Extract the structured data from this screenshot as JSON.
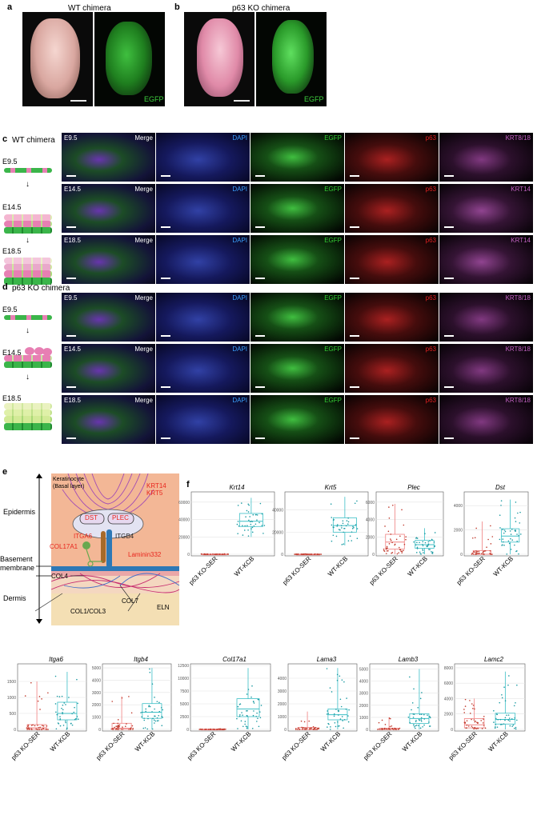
{
  "panel_labels": {
    "a": "a",
    "b": "b",
    "c": "c",
    "d": "d",
    "e": "e",
    "f": "f"
  },
  "panel_a": {
    "title": "WT chimera",
    "egfp": "EGFP"
  },
  "panel_b": {
    "title": "p63 KO chimera",
    "egfp": "EGFP"
  },
  "panel_c": {
    "side_title": "WT chimera",
    "stages": [
      "E9.5",
      "E14.5",
      "E18.5"
    ],
    "rows": [
      {
        "stage": "E9.5",
        "channels": [
          "Merge",
          "DAPI",
          "EGFP",
          "p63",
          "KRT8/18"
        ]
      },
      {
        "stage": "E14.5",
        "channels": [
          "Merge",
          "DAPI",
          "EGFP",
          "p63",
          "KRT14"
        ]
      },
      {
        "stage": "E18.5",
        "channels": [
          "Merge",
          "DAPI",
          "EGFP",
          "p63",
          "KRT14"
        ]
      }
    ]
  },
  "panel_d": {
    "side_title": "p63 KO chimera",
    "stages": [
      "E9.5",
      "E14.5",
      "E18.5"
    ],
    "rows": [
      {
        "stage": "E9.5",
        "channels": [
          "Merge",
          "DAPI",
          "EGFP",
          "p63",
          "KRT8/18"
        ]
      },
      {
        "stage": "E14.5",
        "channels": [
          "Merge",
          "DAPI",
          "EGFP",
          "p63",
          "KRT8/18"
        ]
      },
      {
        "stage": "E18.5",
        "channels": [
          "Merge",
          "DAPI",
          "EGFP",
          "p63",
          "KRT8/18"
        ]
      }
    ]
  },
  "panel_e": {
    "layers": {
      "epidermis": "Epidermis",
      "basement": "Basement\nmembrane",
      "dermis": "Dermis"
    },
    "cell_label": "Keratinocyte\n(Basal layer)",
    "krt": "KRT14\nKRT5",
    "dst": "DST",
    "plec": "PLEC",
    "itga6": "ITGA6",
    "itgb4": "ITGB4",
    "col17a1": "COL17A1",
    "laminin": "Laminin332",
    "col4": "COL4",
    "col7": "COL7",
    "eln": "ELN",
    "col1": "COL1/COL3"
  },
  "colors": {
    "ko": "#f08080",
    "wt": "#3cbfc6",
    "egfp": "#33cc33",
    "dapi": "#4a7bdc",
    "p63": "#e03030",
    "krt": "#c060c0",
    "red_text": "#e8261e"
  },
  "chart_data": [
    {
      "type": "box",
      "gene": "Krt14",
      "categories": [
        "p63 KO-SER",
        "WT-KCB"
      ],
      "ylim": [
        0,
        70000
      ],
      "yticks": [
        0,
        20000,
        40000,
        60000
      ],
      "series": [
        {
          "name": "p63 KO-SER",
          "q1": 0,
          "median": 0,
          "q3": 200,
          "whisker_low": 0,
          "whisker_high": 500
        },
        {
          "name": "WT-KCB",
          "q1": 32000,
          "median": 38000,
          "q3": 47000,
          "whisker_low": 20000,
          "whisker_high": 65000
        }
      ]
    },
    {
      "type": "box",
      "gene": "Krt5",
      "categories": [
        "p63 KO-SER",
        "WT-KCB"
      ],
      "ylim": [
        0,
        55000
      ],
      "yticks": [
        0,
        20000,
        40000
      ],
      "series": [
        {
          "name": "p63 KO-SER",
          "q1": 0,
          "median": 0,
          "q3": 100,
          "whisker_low": 0,
          "whisker_high": 300
        },
        {
          "name": "WT-KCB",
          "q1": 20000,
          "median": 26000,
          "q3": 33000,
          "whisker_low": 8000,
          "whisker_high": 52000
        }
      ]
    },
    {
      "type": "box",
      "gene": "Plec",
      "categories": [
        "p63 KO-SER",
        "WT-KCB"
      ],
      "ylim": [
        0,
        7000
      ],
      "yticks": [
        0,
        2000,
        4000,
        6000
      ],
      "series": [
        {
          "name": "p63 KO-SER",
          "q1": 600,
          "median": 1400,
          "q3": 2300,
          "whisker_low": 0,
          "whisker_high": 5800
        },
        {
          "name": "WT-KCB",
          "q1": 700,
          "median": 1100,
          "q3": 1600,
          "whisker_low": 0,
          "whisker_high": 3000
        }
      ]
    },
    {
      "type": "box",
      "gene": "Dst",
      "categories": [
        "p63 KO-SER",
        "WT-KCB"
      ],
      "ylim": [
        0,
        5000
      ],
      "yticks": [
        0,
        2000,
        4000
      ],
      "series": [
        {
          "name": "p63 KO-SER",
          "q1": 0,
          "median": 0,
          "q3": 300,
          "whisker_low": 0,
          "whisker_high": 2700
        },
        {
          "name": "WT-KCB",
          "q1": 1000,
          "median": 1500,
          "q3": 2100,
          "whisker_low": 0,
          "whisker_high": 4500
        }
      ]
    },
    {
      "type": "box",
      "gene": "Itga6",
      "categories": [
        "p63 KO-SER",
        "WT-KCB"
      ],
      "ylim": [
        0,
        2000
      ],
      "yticks": [
        0,
        500,
        1000,
        1500
      ],
      "series": [
        {
          "name": "p63 KO-SER",
          "q1": 0,
          "median": 50,
          "q3": 150,
          "whisker_low": 0,
          "whisker_high": 1500
        },
        {
          "name": "WT-KCB",
          "q1": 300,
          "median": 500,
          "q3": 850,
          "whisker_low": 0,
          "whisker_high": 1800
        }
      ]
    },
    {
      "type": "box",
      "gene": "Itgb4",
      "categories": [
        "p63 KO-SER",
        "WT-KCB"
      ],
      "ylim": [
        0,
        5200
      ],
      "yticks": [
        0,
        1000,
        2000,
        3000,
        4000,
        5000
      ],
      "series": [
        {
          "name": "p63 KO-SER",
          "q1": 0,
          "median": 100,
          "q3": 500,
          "whisker_low": 0,
          "whisker_high": 2700
        },
        {
          "name": "WT-KCB",
          "q1": 900,
          "median": 1400,
          "q3": 2100,
          "whisker_low": 0,
          "whisker_high": 5000
        }
      ]
    },
    {
      "type": "box",
      "gene": "Col17a1",
      "categories": [
        "p63 KO-SER",
        "WT-KCB"
      ],
      "ylim": [
        0,
        12500
      ],
      "yticks": [
        0,
        2500,
        5000,
        7500,
        10000,
        12500
      ],
      "series": [
        {
          "name": "p63 KO-SER",
          "q1": 0,
          "median": 0,
          "q3": 50,
          "whisker_low": 0,
          "whisker_high": 100
        },
        {
          "name": "WT-KCB",
          "q1": 2500,
          "median": 4000,
          "q3": 6000,
          "whisker_low": 0,
          "whisker_high": 12000
        }
      ]
    },
    {
      "type": "box",
      "gene": "Lama3",
      "categories": [
        "p63 KO-SER",
        "WT-KCB"
      ],
      "ylim": [
        0,
        5000
      ],
      "yticks": [
        0,
        1000,
        2000,
        3000,
        4000
      ],
      "series": [
        {
          "name": "p63 KO-SER",
          "q1": 0,
          "median": 0,
          "q3": 150,
          "whisker_low": 0,
          "whisker_high": 1400
        },
        {
          "name": "WT-KCB",
          "q1": 750,
          "median": 1150,
          "q3": 1600,
          "whisker_low": 0,
          "whisker_high": 4800
        }
      ]
    },
    {
      "type": "box",
      "gene": "Lamb3",
      "categories": [
        "p63 KO-SER",
        "WT-KCB"
      ],
      "ylim": [
        0,
        5300
      ],
      "yticks": [
        0,
        1000,
        2000,
        3000,
        4000,
        5000
      ],
      "series": [
        {
          "name": "p63 KO-SER",
          "q1": 0,
          "median": 0,
          "q3": 100,
          "whisker_low": 0,
          "whisker_high": 1000
        },
        {
          "name": "WT-KCB",
          "q1": 500,
          "median": 900,
          "q3": 1300,
          "whisker_low": 0,
          "whisker_high": 5000
        }
      ]
    },
    {
      "type": "box",
      "gene": "Lamc2",
      "categories": [
        "p63 KO-SER",
        "WT-KCB"
      ],
      "ylim": [
        0,
        8300
      ],
      "yticks": [
        0,
        2000,
        4000,
        6000,
        8000
      ],
      "series": [
        {
          "name": "p63 KO-SER",
          "q1": 200,
          "median": 600,
          "q3": 1400,
          "whisker_low": 0,
          "whisker_high": 4000
        },
        {
          "name": "WT-KCB",
          "q1": 700,
          "median": 1300,
          "q3": 2100,
          "whisker_low": 0,
          "whisker_high": 7500
        }
      ]
    }
  ]
}
